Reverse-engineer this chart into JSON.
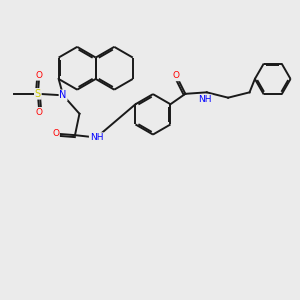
{
  "background_color": "#ebebeb",
  "atom_colors": {
    "N": "#0000ff",
    "O": "#ff0000",
    "S": "#cccc00",
    "H": "#2e8b8b"
  },
  "bond_color": "#1a1a1a",
  "bond_width": 1.4,
  "dbo": 0.055,
  "ring_r": 0.72,
  "ph_r": 0.6
}
